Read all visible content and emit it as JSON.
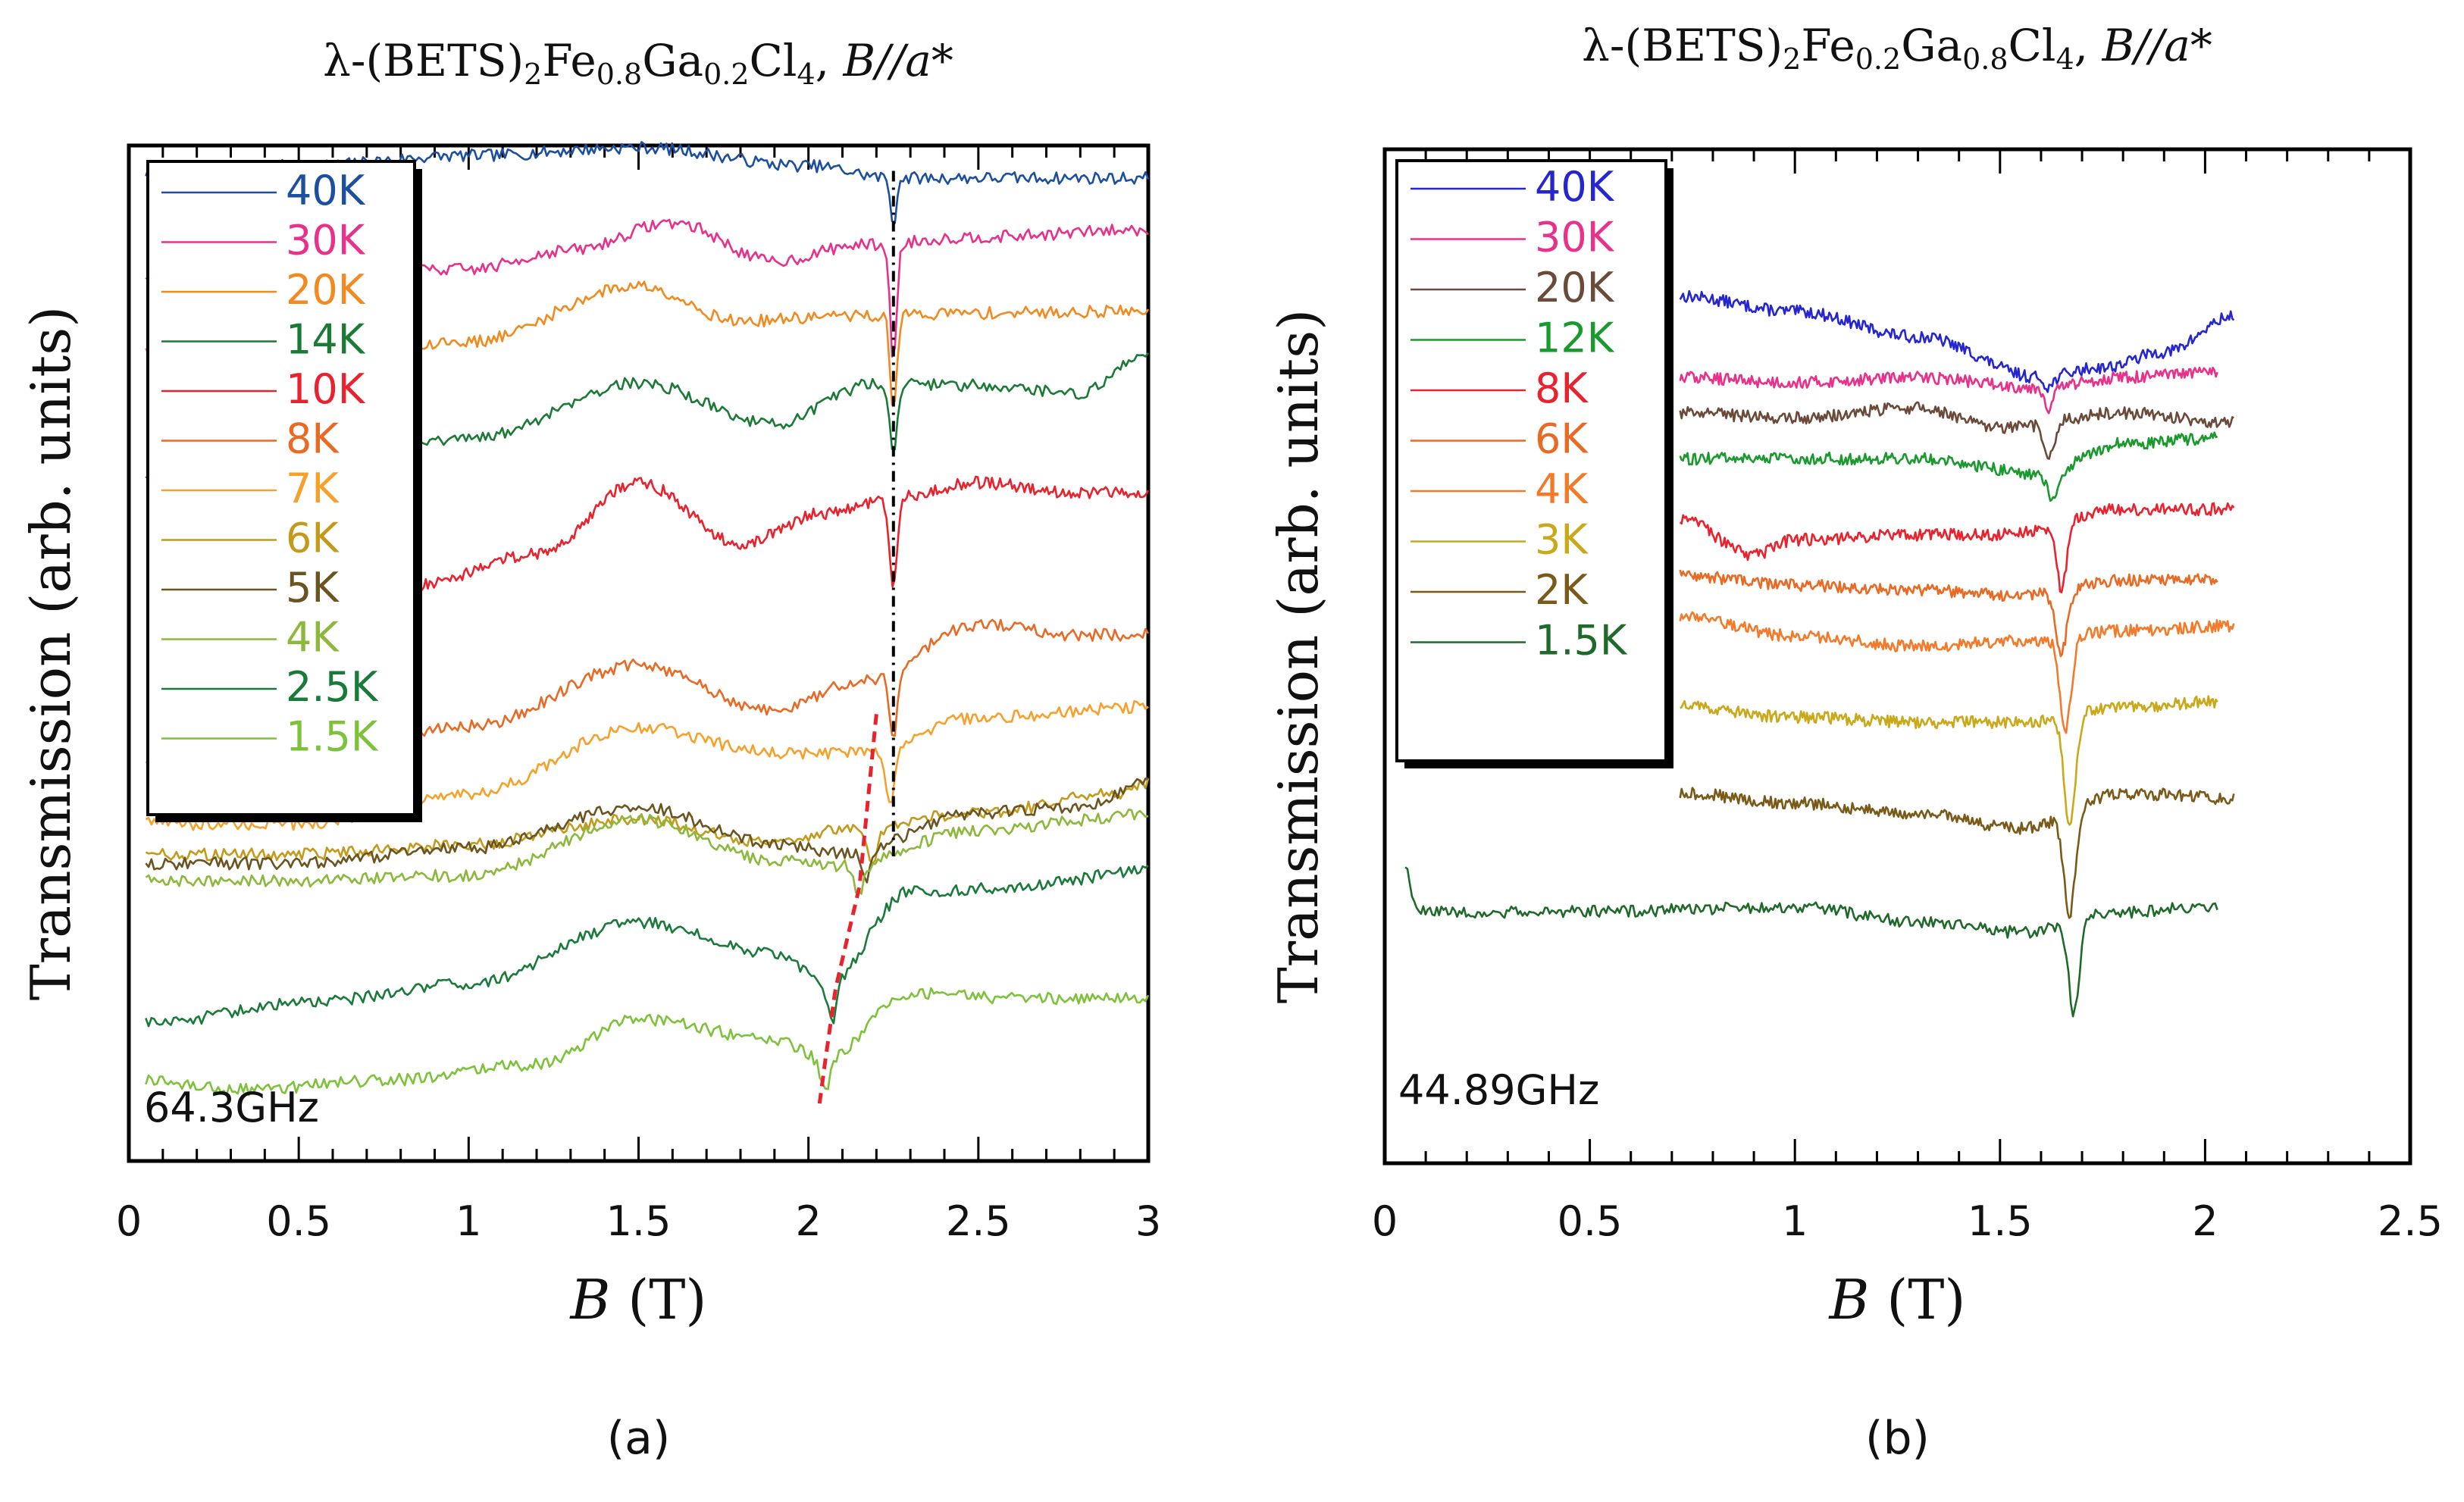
{
  "chart_data": [
    {
      "type": "line",
      "panel_label": "(a)",
      "title": {
        "prefix": "λ-(BETS)",
        "sub1": "2",
        "el1": "Fe",
        "sub2": "0.8",
        "el2": "Ga",
        "sub3": "0.2",
        "el3": "Cl",
        "sub4": "4",
        "sep": ", ",
        "field": "B//a*"
      },
      "xlabel": {
        "var": "B",
        "unit": " (T)"
      },
      "ylabel": "Transmission (arb. units)",
      "xlim": [
        0,
        3
      ],
      "ylim": [
        0,
        1
      ],
      "xticks": [
        0,
        0.5,
        1,
        1.5,
        2,
        2.5,
        3
      ],
      "xtick_labels": [
        "0",
        "0.5",
        "1",
        "1.5",
        "2",
        "2.5",
        "3"
      ],
      "annotation": "64.3GHz",
      "legend_position": "top-left",
      "series": [
        {
          "name": "40K",
          "color": "#1d4fa0",
          "offset": 0.968,
          "x": [
            0.05,
            0.5,
            1.0,
            1.5,
            2.0,
            2.25,
            2.6,
            3.0
          ],
          "y": [
            0.005,
            0.012,
            0.022,
            0.03,
            0.012,
            0.0,
            0.0,
            0.0
          ],
          "dip_x": 2.25,
          "dip_depth": 0.045,
          "dip_width": 0.012
        },
        {
          "name": "30K",
          "color": "#e8318a",
          "offset": 0.872,
          "x": [
            0.05,
            0.5,
            1.0,
            1.3,
            1.6,
            1.9,
            2.15,
            2.5,
            3.0
          ],
          "y": [
            0.0,
            0.0,
            0.006,
            0.025,
            0.052,
            0.014,
            0.03,
            0.038,
            0.045
          ],
          "dip_x": 2.25,
          "dip_depth": 0.115,
          "dip_width": 0.014
        },
        {
          "name": "20K",
          "color": "#f28a20",
          "offset": 0.797,
          "x": [
            0.05,
            0.5,
            1.0,
            1.5,
            1.8,
            2.1,
            2.5,
            3.0
          ],
          "y": [
            0.0,
            0.0,
            0.01,
            0.065,
            0.03,
            0.035,
            0.038,
            0.04
          ],
          "dip_x": 2.25,
          "dip_depth": 0.09,
          "dip_width": 0.014
        },
        {
          "name": "14K",
          "color": "#1a7a36",
          "offset": 0.676,
          "x": [
            0.05,
            0.5,
            1.0,
            1.5,
            1.9,
            2.2,
            2.5,
            2.8,
            3.0
          ],
          "y": [
            0.0,
            0.01,
            0.035,
            0.09,
            0.05,
            0.09,
            0.088,
            0.08,
            0.12
          ],
          "dip_x": 2.25,
          "dip_depth": 0.065,
          "dip_width": 0.016
        },
        {
          "name": "10K",
          "color": "#e8232e",
          "offset": 0.568,
          "x": [
            0.85,
            1.2,
            1.5,
            1.8,
            2.05,
            2.25,
            2.5,
            2.8,
            3.0
          ],
          "y": [
            0.0,
            0.03,
            0.1,
            0.04,
            0.07,
            0.085,
            0.1,
            0.09,
            0.09
          ],
          "dip_x": 2.25,
          "dip_depth": 0.09,
          "dip_width": 0.016
        },
        {
          "name": "8K",
          "color": "#e86a24",
          "offset": 0.398,
          "x": [
            0.05,
            0.5,
            1.0,
            1.5,
            1.9,
            2.15,
            2.5,
            2.8,
            3.0
          ],
          "y": [
            0.0,
            0.005,
            0.03,
            0.09,
            0.045,
            0.075,
            0.13,
            0.12,
            0.12
          ],
          "dip_x": 2.25,
          "dip_depth": 0.07,
          "dip_width": 0.016
        },
        {
          "name": "7K",
          "color": "#f5a12c",
          "offset": 0.332,
          "x": [
            0.05,
            0.5,
            1.0,
            1.5,
            1.9,
            2.15,
            2.5,
            3.0
          ],
          "y": [
            0.0,
            0.0,
            0.03,
            0.095,
            0.07,
            0.07,
            0.105,
            0.115
          ],
          "dip_x": 2.24,
          "dip_depth": 0.06,
          "dip_width": 0.018
        },
        {
          "name": "6K",
          "color": "#c49a1a",
          "offset": 0.302,
          "x": [
            0.05,
            0.5,
            1.0,
            1.5,
            1.9,
            2.1,
            2.5,
            2.9,
            3.0
          ],
          "y": [
            0.0,
            0.0,
            0.01,
            0.035,
            0.01,
            0.025,
            0.04,
            0.06,
            0.07
          ],
          "dip_x": 2.19,
          "dip_depth": 0.035,
          "dip_width": 0.02
        },
        {
          "name": "5K",
          "color": "#6b5420",
          "offset": 0.293,
          "x": [
            0.05,
            0.5,
            1.0,
            1.5,
            1.9,
            2.1,
            2.5,
            2.8,
            3.0
          ],
          "y": [
            0.0,
            0.0,
            0.015,
            0.055,
            0.02,
            0.01,
            0.05,
            0.055,
            0.08
          ],
          "dip_x": 2.17,
          "dip_depth": 0.03,
          "dip_width": 0.02
        },
        {
          "name": "4K",
          "color": "#8cb83c",
          "offset": 0.276,
          "x": [
            0.05,
            0.5,
            1.0,
            1.5,
            1.9,
            2.1,
            2.5,
            3.0
          ],
          "y": [
            0.0,
            0.0,
            0.005,
            0.06,
            0.02,
            0.015,
            0.05,
            0.065
          ],
          "dip_x": 2.15,
          "dip_depth": 0.03,
          "dip_width": 0.02
        },
        {
          "name": "2.5K",
          "color": "#1a7a3a",
          "offset": 0.135,
          "x": [
            0.05,
            0.5,
            1.0,
            1.5,
            1.9,
            2.05,
            2.3,
            2.6,
            3.0
          ],
          "y": [
            0.0,
            0.02,
            0.04,
            0.1,
            0.07,
            0.04,
            0.13,
            0.135,
            0.15
          ],
          "dip_x": 2.07,
          "dip_depth": 0.04,
          "dip_width": 0.02
        },
        {
          "name": "1.5K",
          "color": "#7dc23a",
          "offset": 0.08,
          "x": [
            0.05,
            0.3,
            0.8,
            1.2,
            1.5,
            1.9,
            2.05,
            2.3,
            2.6,
            3.0
          ],
          "y": [
            0.0,
            -0.01,
            0.0,
            0.015,
            0.06,
            0.04,
            0.02,
            0.085,
            0.08,
            0.08
          ],
          "dip_x": 2.05,
          "dip_depth": 0.03,
          "dip_width": 0.02
        }
      ],
      "guide_lines": [
        {
          "style": "dashed",
          "color": "#000000",
          "points": [
            [
              2.25,
              0.975
            ],
            [
              2.25,
              0.3
            ]
          ]
        },
        {
          "style": "dashed",
          "color": "#e8232e",
          "points": [
            [
              2.2,
              0.44
            ],
            [
              2.15,
              0.27
            ],
            [
              2.08,
              0.17
            ],
            [
              2.05,
              0.1
            ],
            [
              2.03,
              0.05
            ]
          ]
        }
      ]
    },
    {
      "type": "line",
      "panel_label": "(b)",
      "title": {
        "prefix": "λ-(BETS)",
        "sub1": "2",
        "el1": "Fe",
        "sub2": "0.2",
        "el2": "Ga",
        "sub3": "0.8",
        "el3": "Cl",
        "sub4": "4",
        "sep": ", ",
        "field": "B//a*"
      },
      "xlabel": {
        "var": "B",
        "unit": " (T)"
      },
      "ylabel": "Transmission (arb. units)",
      "xlim": [
        0,
        2.5
      ],
      "ylim": [
        0,
        1
      ],
      "xticks": [
        0,
        0.5,
        1,
        1.5,
        2,
        2.5
      ],
      "xtick_labels": [
        "0",
        "0.5",
        "1",
        "1.5",
        "2",
        "2.5"
      ],
      "annotation": "44.89GHz",
      "legend_position": "top-left",
      "series": [
        {
          "name": "40K",
          "color": "#2626d0",
          "offset": 0.815,
          "x": [
            0.72,
            1.0,
            1.3,
            1.6,
            1.75,
            1.9,
            2.07
          ],
          "y": [
            0.04,
            0.025,
            0.0,
            -0.04,
            -0.03,
            -0.015,
            0.02
          ],
          "dip_x": 1.62,
          "dip_depth": 0.01,
          "dip_width": 0.015
        },
        {
          "name": "30K",
          "color": "#e8318a",
          "offset": 0.775,
          "x": [
            0.72,
            1.0,
            1.3,
            1.6,
            1.8,
            2.03
          ],
          "y": [
            0.0,
            -0.005,
            0.0,
            -0.01,
            0.0,
            0.005
          ],
          "dip_x": 1.62,
          "dip_depth": 0.02,
          "dip_width": 0.015
        },
        {
          "name": "20K",
          "color": "#6b4a3a",
          "offset": 0.74,
          "x": [
            0.72,
            1.0,
            1.3,
            1.5,
            1.8,
            2.07
          ],
          "y": [
            0.0,
            -0.005,
            0.005,
            -0.015,
            0.0,
            -0.01
          ],
          "dip_x": 1.62,
          "dip_depth": 0.035,
          "dip_width": 0.018
        },
        {
          "name": "12K",
          "color": "#1a9a2e",
          "offset": 0.695,
          "x": [
            0.72,
            1.0,
            1.3,
            1.6,
            1.8,
            2.03
          ],
          "y": [
            0.0,
            0.0,
            0.0,
            -0.015,
            0.015,
            0.02
          ],
          "dip_x": 1.63,
          "dip_depth": 0.03,
          "dip_width": 0.018
        },
        {
          "name": "8K",
          "color": "#e8232e",
          "offset": 0.635,
          "x": [
            0.72,
            0.9,
            1.0,
            1.3,
            1.5,
            1.8,
            2.07
          ],
          "y": [
            0.0,
            -0.035,
            -0.02,
            -0.015,
            -0.015,
            0.01,
            0.01
          ],
          "dip_x": 1.65,
          "dip_depth": 0.065,
          "dip_width": 0.018
        },
        {
          "name": "6K",
          "color": "#e86a24",
          "offset": 0.58,
          "x": [
            0.72,
            1.0,
            1.3,
            1.55,
            1.8,
            2.03
          ],
          "y": [
            0.0,
            -0.01,
            -0.015,
            -0.02,
            -0.005,
            -0.005
          ],
          "dip_x": 1.65,
          "dip_depth": 0.06,
          "dip_width": 0.02
        },
        {
          "name": "4K",
          "color": "#f27a2a",
          "offset": 0.54,
          "x": [
            0.72,
            1.0,
            1.3,
            1.55,
            1.8,
            2.07
          ],
          "y": [
            0.0,
            -0.02,
            -0.03,
            -0.025,
            -0.015,
            -0.01
          ],
          "dip_x": 1.66,
          "dip_depth": 0.09,
          "dip_width": 0.02
        },
        {
          "name": "3K",
          "color": "#c9a81a",
          "offset": 0.45,
          "x": [
            0.72,
            1.0,
            1.3,
            1.55,
            1.8,
            2.03
          ],
          "y": [
            0.0,
            -0.01,
            -0.015,
            -0.015,
            0.0,
            0.005
          ],
          "dip_x": 1.67,
          "dip_depth": 0.105,
          "dip_width": 0.02
        },
        {
          "name": "2K",
          "color": "#7a5a18",
          "offset": 0.365,
          "x": [
            0.72,
            1.0,
            1.3,
            1.55,
            1.8,
            2.07
          ],
          "y": [
            0.0,
            -0.01,
            -0.02,
            -0.035,
            0.0,
            -0.005
          ],
          "dip_x": 1.67,
          "dip_depth": 0.1,
          "dip_width": 0.02
        },
        {
          "name": "1.5K",
          "color": "#1f6a2a",
          "offset": 0.248,
          "x": [
            0.05,
            0.08,
            0.1,
            0.5,
            1.0,
            1.3,
            1.55,
            1.8,
            2.03
          ],
          "y": [
            0.045,
            0.0,
            0.0,
            0.0,
            0.005,
            -0.01,
            -0.02,
            0.0,
            0.005
          ],
          "dip_x": 1.68,
          "dip_depth": 0.09,
          "dip_width": 0.018
        }
      ],
      "guide_lines": []
    }
  ]
}
